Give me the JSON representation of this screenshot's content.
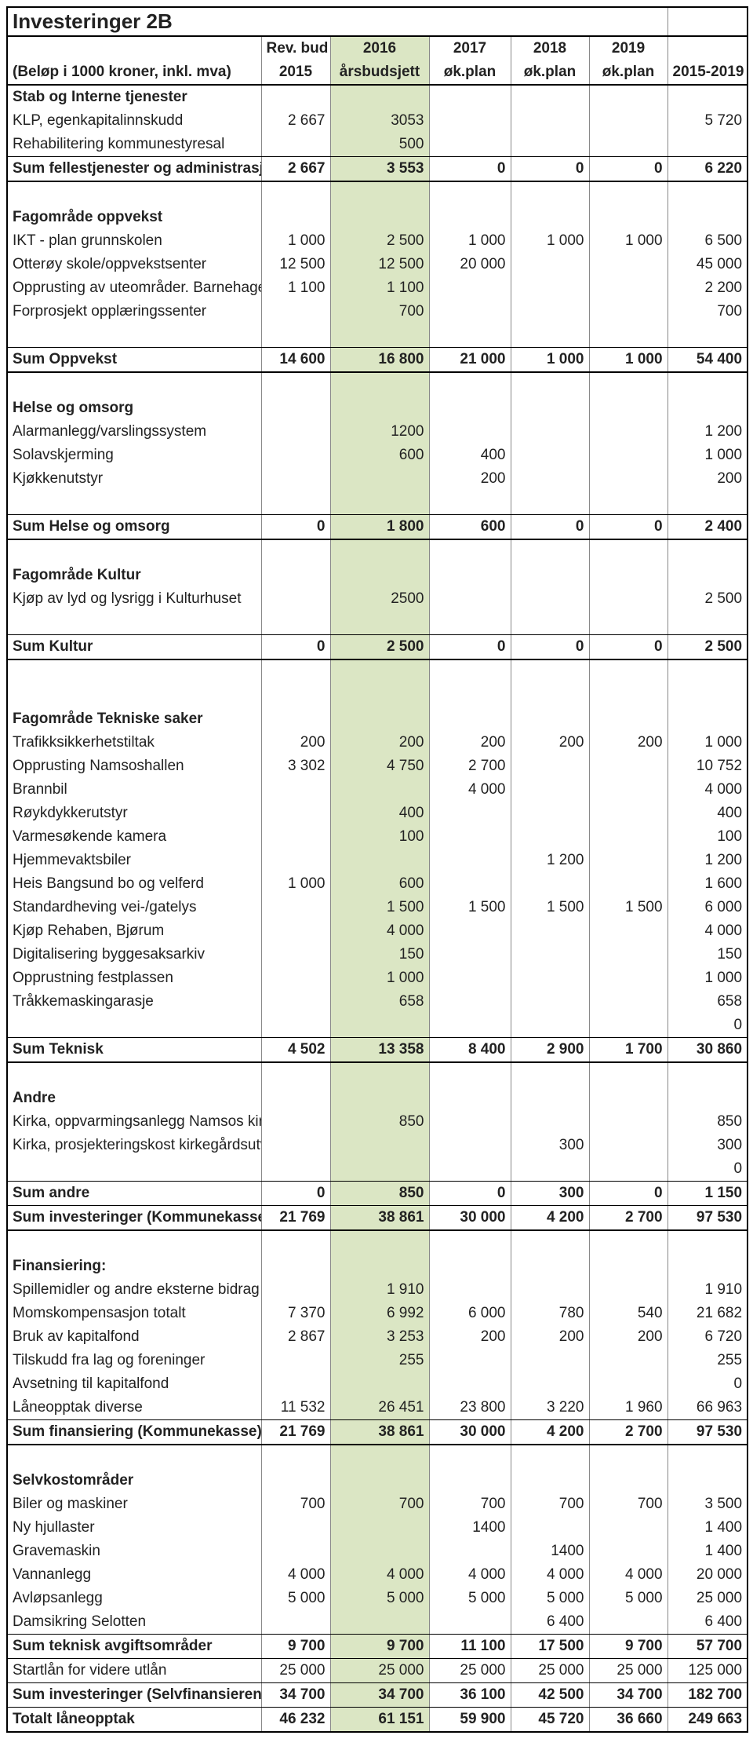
{
  "title": "Investeringer 2B",
  "subtitle": "(Beløp i 1000 kroner, inkl. mva)",
  "headers": {
    "c1a": "Rev. bud",
    "c1b": "2015",
    "c2a": "2016",
    "c2b": "årsbudsjett",
    "c3a": "2017",
    "c3b": "øk.plan",
    "c4a": "2018",
    "c4b": "øk.plan",
    "c5a": "2019",
    "c5b": "øk.plan",
    "c6": "2015-2019"
  },
  "colors": {
    "highlight": "#dbe6c4",
    "border": "#000000"
  },
  "rows": [
    {
      "type": "section",
      "label": "Stab og Interne tjenester"
    },
    {
      "type": "data",
      "label": "KLP, egenkapitalinnskudd",
      "v": [
        "2 667",
        "3053",
        "",
        "",
        "",
        "5 720"
      ]
    },
    {
      "type": "data",
      "label": "Rehabilitering kommunestyresal",
      "v": [
        "",
        "500",
        "",
        "",
        "",
        ""
      ],
      "bb": "thin"
    },
    {
      "type": "sum",
      "label": "Sum fellestjenester og administrasjon",
      "v": [
        "2 667",
        "3 553",
        "0",
        "0",
        "0",
        "6 220"
      ],
      "bb": "thick"
    },
    {
      "type": "spacer"
    },
    {
      "type": "section",
      "label": "Fagområde oppvekst"
    },
    {
      "type": "data",
      "label": "IKT - plan grunnskolen",
      "v": [
        "1 000",
        "2 500",
        "1 000",
        "1 000",
        "1 000",
        "6 500"
      ]
    },
    {
      "type": "data",
      "label": "Otterøy skole/oppvekstsenter",
      "v": [
        "12 500",
        "12 500",
        "20 000",
        "",
        "",
        "45 000"
      ]
    },
    {
      "type": "data",
      "label": "Opprusting av uteområder. Barnehage og",
      "v": [
        "1 100",
        "1 100",
        "",
        "",
        "",
        "2 200"
      ]
    },
    {
      "type": "data",
      "label": "Forprosjekt opplæringssenter",
      "v": [
        "",
        "700",
        "",
        "",
        "",
        "700"
      ]
    },
    {
      "type": "spacer",
      "bb": "thin"
    },
    {
      "type": "sum",
      "label": "Sum Oppvekst",
      "v": [
        "14 600",
        "16 800",
        "21 000",
        "1 000",
        "1 000",
        "54 400"
      ],
      "bb": "thick"
    },
    {
      "type": "spacer"
    },
    {
      "type": "section",
      "label": "Helse og omsorg"
    },
    {
      "type": "data",
      "label": "Alarmanlegg/varslingssystem",
      "v": [
        "",
        "1200",
        "",
        "",
        "",
        "1 200"
      ]
    },
    {
      "type": "data",
      "label": "Solavskjerming",
      "v": [
        "",
        "600",
        "400",
        "",
        "",
        "1 000"
      ]
    },
    {
      "type": "data",
      "label": "Kjøkkenutstyr",
      "v": [
        "",
        "",
        "200",
        "",
        "",
        "200"
      ]
    },
    {
      "type": "spacer",
      "bb": "thin"
    },
    {
      "type": "sum",
      "label": "Sum Helse og omsorg",
      "v": [
        "0",
        "1 800",
        "600",
        "0",
        "0",
        "2 400"
      ],
      "bb": "thick"
    },
    {
      "type": "spacer"
    },
    {
      "type": "section",
      "label": "Fagområde Kultur"
    },
    {
      "type": "data",
      "label": "Kjøp av lyd og lysrigg i Kulturhuset",
      "v": [
        "",
        "2500",
        "",
        "",
        "",
        "2 500"
      ]
    },
    {
      "type": "spacer",
      "bb": "thin"
    },
    {
      "type": "sum",
      "label": "Sum Kultur",
      "v": [
        "0",
        "2 500",
        "0",
        "0",
        "0",
        "2 500"
      ],
      "bb": "thick"
    },
    {
      "type": "spacer"
    },
    {
      "type": "spacer"
    },
    {
      "type": "section",
      "label": "Fagområde Tekniske saker"
    },
    {
      "type": "data",
      "label": "Trafikksikkerhetstiltak",
      "v": [
        "200",
        "200",
        "200",
        "200",
        "200",
        "1 000"
      ]
    },
    {
      "type": "data",
      "label": "Opprusting Namsoshallen",
      "v": [
        "3 302",
        "4 750",
        "2 700",
        "",
        "",
        "10 752"
      ]
    },
    {
      "type": "data",
      "label": "Brannbil",
      "v": [
        "",
        "",
        "4 000",
        "",
        "",
        "4 000"
      ]
    },
    {
      "type": "data",
      "label": "Røykdykkerutstyr",
      "v": [
        "",
        "400",
        "",
        "",
        "",
        "400"
      ]
    },
    {
      "type": "data",
      "label": "Varmesøkende kamera",
      "v": [
        "",
        "100",
        "",
        "",
        "",
        "100"
      ]
    },
    {
      "type": "data",
      "label": "Hjemmevaktsbiler",
      "v": [
        "",
        "",
        "",
        "1 200",
        "",
        "1 200"
      ]
    },
    {
      "type": "data",
      "label": "Heis Bangsund bo og velferd",
      "v": [
        "1 000",
        "600",
        "",
        "",
        "",
        "1 600"
      ]
    },
    {
      "type": "data",
      "label": "Standardheving vei-/gatelys",
      "v": [
        "",
        "1 500",
        "1 500",
        "1 500",
        "1 500",
        "6 000"
      ]
    },
    {
      "type": "data",
      "label": "Kjøp Rehaben, Bjørum",
      "v": [
        "",
        "4 000",
        "",
        "",
        "",
        "4 000"
      ]
    },
    {
      "type": "data",
      "label": "Digitalisering byggesaksarkiv",
      "v": [
        "",
        "150",
        "",
        "",
        "",
        "150"
      ]
    },
    {
      "type": "data",
      "label": "Opprustning festplassen",
      "v": [
        "",
        "1 000",
        "",
        "",
        "",
        "1 000"
      ]
    },
    {
      "type": "data",
      "label": "Tråkkemaskingarasje",
      "v": [
        "",
        "658",
        "",
        "",
        "",
        "658"
      ]
    },
    {
      "type": "data",
      "label": "",
      "v": [
        "",
        "",
        "",
        "",
        "",
        "0"
      ],
      "bb": "thin"
    },
    {
      "type": "sum",
      "label": "Sum Teknisk",
      "v": [
        "4 502",
        "13 358",
        "8 400",
        "2 900",
        "1 700",
        "30 860"
      ],
      "bb": "thick"
    },
    {
      "type": "spacer"
    },
    {
      "type": "section",
      "label": "Andre"
    },
    {
      "type": "data",
      "label": "Kirka, oppvarmingsanlegg Namsos kirke",
      "v": [
        "",
        "850",
        "",
        "",
        "",
        "850"
      ]
    },
    {
      "type": "data",
      "label": "Kirka, prosjekteringskost kirkegårdsutvidelse Vemundvik",
      "v": [
        "",
        "",
        "",
        "300",
        "",
        "300"
      ]
    },
    {
      "type": "data",
      "label": "",
      "v": [
        "",
        "",
        "",
        "",
        "",
        "0"
      ],
      "bb": "thin"
    },
    {
      "type": "sum",
      "label": "Sum andre",
      "v": [
        "0",
        "850",
        "0",
        "300",
        "0",
        "1 150"
      ],
      "bb": "thin"
    },
    {
      "type": "sum",
      "label": "Sum investeringer (Kommunekasse)",
      "v": [
        "21 769",
        "38 861",
        "30 000",
        "4 200",
        "2 700",
        "97 530"
      ],
      "bb": "thick"
    },
    {
      "type": "spacer"
    },
    {
      "type": "section",
      "label": "Finansiering:"
    },
    {
      "type": "data",
      "label": "Spillemidler og andre eksterne bidrag",
      "v": [
        "",
        "1 910",
        "",
        "",
        "",
        "1 910"
      ]
    },
    {
      "type": "data",
      "label": "Momskompensasjon totalt",
      "v": [
        "7 370",
        "6 992",
        "6 000",
        "780",
        "540",
        "21 682"
      ]
    },
    {
      "type": "data",
      "label": "Bruk av kapitalfond",
      "v": [
        "2 867",
        "3 253",
        "200",
        "200",
        "200",
        "6 720"
      ]
    },
    {
      "type": "data",
      "label": "Tilskudd fra lag og foreninger",
      "v": [
        "",
        "255",
        "",
        "",
        "",
        "255"
      ]
    },
    {
      "type": "data",
      "label": "Avsetning til kapitalfond",
      "v": [
        "",
        "",
        "",
        "",
        "",
        "0"
      ]
    },
    {
      "type": "data",
      "label": "Låneopptak diverse",
      "v": [
        "11 532",
        "26 451",
        "23 800",
        "3 220",
        "1 960",
        "66 963"
      ],
      "bb": "thin"
    },
    {
      "type": "sum",
      "label": "Sum finansiering (Kommunekasse)",
      "v": [
        "21 769",
        "38 861",
        "30 000",
        "4 200",
        "2 700",
        "97 530"
      ],
      "bb": "thick"
    },
    {
      "type": "spacer"
    },
    {
      "type": "section",
      "label": "Selvkostområder"
    },
    {
      "type": "data",
      "label": "Biler og maskiner",
      "v": [
        "700",
        "700",
        "700",
        "700",
        "700",
        "3 500"
      ]
    },
    {
      "type": "data",
      "label": "Ny hjullaster",
      "v": [
        "",
        "",
        "1400",
        "",
        "",
        "1 400"
      ]
    },
    {
      "type": "data",
      "label": "Gravemaskin",
      "v": [
        "",
        "",
        "",
        "1400",
        "",
        "1 400"
      ]
    },
    {
      "type": "data",
      "label": "Vannanlegg",
      "v": [
        "4 000",
        "4 000",
        "4 000",
        "4 000",
        "4 000",
        "20 000"
      ]
    },
    {
      "type": "data",
      "label": "Avløpsanlegg",
      "v": [
        "5 000",
        "5 000",
        "5 000",
        "5 000",
        "5 000",
        "25 000"
      ]
    },
    {
      "type": "data",
      "label": "Damsikring Selotten",
      "v": [
        "",
        "",
        "",
        "6 400",
        "",
        "6 400"
      ],
      "bb": "thin"
    },
    {
      "type": "sum",
      "label": "Sum teknisk avgiftsområder",
      "v": [
        "9 700",
        "9 700",
        "11 100",
        "17 500",
        "9 700",
        "57 700"
      ],
      "bb": "thin"
    },
    {
      "type": "data",
      "label": "Startlån for videre utlån",
      "v": [
        "25 000",
        "25 000",
        "25 000",
        "25 000",
        "25 000",
        "125 000"
      ],
      "bb": "thin"
    },
    {
      "type": "sum",
      "label": "Sum investeringer (Selvfinansierende)",
      "v": [
        "34 700",
        "34 700",
        "36 100",
        "42 500",
        "34 700",
        "182 700"
      ],
      "bb": "thin"
    },
    {
      "type": "sum",
      "label": "Totalt låneopptak",
      "v": [
        "46 232",
        "61 151",
        "59 900",
        "45 720",
        "36 660",
        "249 663"
      ],
      "bb": "thick"
    }
  ]
}
